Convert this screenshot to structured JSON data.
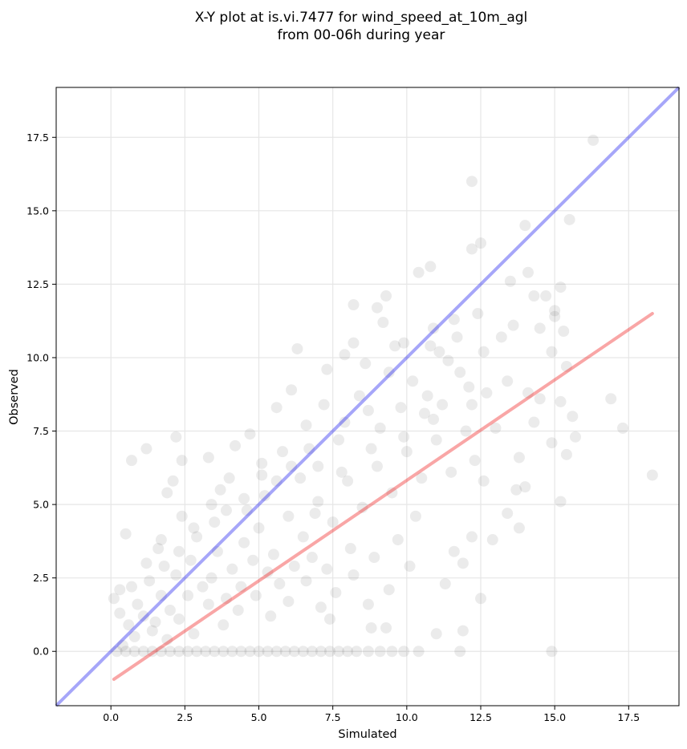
{
  "chart_data": {
    "type": "scatter",
    "title_line1": "X-Y plot at is.vi.7477 for wind_speed_at_10m_agl",
    "title_line2": "from 00-06h during year",
    "xlabel": "Simulated",
    "ylabel": "Observed",
    "xlim": [
      -1.85,
      19.2
    ],
    "ylim": [
      -1.85,
      19.2
    ],
    "xticks": [
      0.0,
      2.5,
      5.0,
      7.5,
      10.0,
      12.5,
      15.0,
      17.5
    ],
    "yticks": [
      0.0,
      2.5,
      5.0,
      7.5,
      10.0,
      12.5,
      15.0,
      17.5
    ],
    "tick_labels": [
      "0.0",
      "2.5",
      "5.0",
      "7.5",
      "10.0",
      "12.5",
      "15.0",
      "17.5"
    ],
    "grid": true,
    "point_color": "#000000",
    "point_opacity": 0.08,
    "identity_line": {
      "color": "#0000ee",
      "opacity": 0.35,
      "x": [
        -1.85,
        19.2
      ],
      "y": [
        -1.85,
        19.2
      ]
    },
    "fit_line": {
      "color": "#ee0000",
      "opacity": 0.35,
      "x": [
        0.1,
        18.3
      ],
      "y": [
        -0.95,
        11.5
      ]
    },
    "points": [
      [
        16.3,
        17.4
      ],
      [
        12.2,
        16.0
      ],
      [
        15.5,
        14.7
      ],
      [
        14.0,
        14.5
      ],
      [
        12.5,
        13.9
      ],
      [
        12.2,
        13.7
      ],
      [
        10.8,
        13.1
      ],
      [
        10.4,
        12.9
      ],
      [
        13.5,
        12.6
      ],
      [
        14.1,
        12.9
      ],
      [
        15.2,
        12.4
      ],
      [
        14.3,
        12.1
      ],
      [
        14.7,
        12.1
      ],
      [
        9.3,
        12.1
      ],
      [
        8.2,
        11.8
      ],
      [
        9.0,
        11.7
      ],
      [
        15.0,
        11.6
      ],
      [
        15.0,
        11.4
      ],
      [
        12.4,
        11.5
      ],
      [
        14.5,
        11.0
      ],
      [
        13.6,
        11.1
      ],
      [
        15.3,
        10.9
      ],
      [
        11.6,
        11.3
      ],
      [
        13.2,
        10.7
      ],
      [
        12.6,
        10.2
      ],
      [
        11.1,
        10.2
      ],
      [
        14.9,
        10.2
      ],
      [
        10.8,
        10.4
      ],
      [
        9.9,
        10.5
      ],
      [
        8.2,
        10.5
      ],
      [
        6.3,
        10.3
      ],
      [
        15.4,
        9.7
      ],
      [
        11.8,
        9.5
      ],
      [
        13.4,
        9.2
      ],
      [
        12.7,
        8.8
      ],
      [
        12.2,
        8.4
      ],
      [
        14.1,
        8.8
      ],
      [
        14.5,
        8.6
      ],
      [
        15.2,
        8.5
      ],
      [
        16.9,
        8.6
      ],
      [
        14.3,
        7.8
      ],
      [
        15.6,
        8.0
      ],
      [
        13.0,
        7.6
      ],
      [
        14.9,
        7.1
      ],
      [
        15.7,
        7.3
      ],
      [
        17.3,
        7.6
      ],
      [
        13.8,
        6.6
      ],
      [
        15.4,
        6.7
      ],
      [
        12.6,
        5.8
      ],
      [
        13.7,
        5.5
      ],
      [
        14.0,
        5.6
      ],
      [
        13.4,
        4.7
      ],
      [
        15.2,
        5.1
      ],
      [
        18.3,
        6.0
      ],
      [
        13.8,
        4.2
      ],
      [
        12.9,
        3.8
      ],
      [
        12.2,
        3.9
      ],
      [
        11.6,
        3.4
      ],
      [
        11.9,
        3.0
      ],
      [
        11.3,
        2.3
      ],
      [
        12.5,
        1.8
      ],
      [
        11.9,
        0.7
      ],
      [
        11.0,
        0.6
      ],
      [
        14.9,
        0.0
      ],
      [
        11.8,
        0.0
      ],
      [
        9.3,
        0.8
      ],
      [
        8.8,
        0.8
      ],
      [
        7.4,
        1.1
      ],
      [
        0.7,
        6.5
      ],
      [
        1.2,
        6.9
      ],
      [
        2.2,
        7.3
      ],
      [
        2.1,
        5.8
      ],
      [
        1.9,
        5.4
      ],
      [
        0.5,
        4.0
      ],
      [
        0.1,
        1.8
      ],
      [
        0.3,
        2.1
      ],
      [
        1.6,
        3.5
      ],
      [
        2.4,
        6.5
      ],
      [
        3.3,
        6.6
      ],
      [
        3.7,
        5.5
      ],
      [
        4.2,
        7.0
      ],
      [
        4.7,
        7.4
      ],
      [
        5.1,
        6.4
      ],
      [
        5.6,
        8.3
      ],
      [
        6.1,
        8.9
      ],
      [
        6.6,
        7.7
      ],
      [
        7.3,
        9.6
      ],
      [
        7.9,
        10.1
      ],
      [
        8.6,
        9.8
      ],
      [
        9.2,
        11.2
      ],
      [
        9.6,
        10.4
      ],
      [
        10.2,
        9.2
      ],
      [
        10.7,
        8.7
      ],
      [
        10.9,
        7.9
      ],
      [
        11.4,
        9.9
      ],
      [
        9.8,
        8.3
      ],
      [
        9.1,
        7.6
      ],
      [
        8.4,
        8.7
      ],
      [
        7.7,
        7.2
      ],
      [
        7.0,
        6.3
      ],
      [
        6.4,
        5.9
      ],
      [
        5.8,
        6.8
      ],
      [
        5.2,
        5.3
      ],
      [
        4.6,
        4.8
      ],
      [
        4.0,
        5.9
      ],
      [
        3.5,
        4.4
      ],
      [
        2.9,
        3.9
      ],
      [
        2.4,
        4.6
      ],
      [
        1.8,
        2.9
      ],
      [
        1.3,
        2.4
      ],
      [
        0.9,
        1.6
      ],
      [
        0.6,
        0.9
      ],
      [
        1.1,
        1.2
      ],
      [
        1.7,
        1.9
      ],
      [
        2.2,
        2.6
      ],
      [
        2.7,
        3.1
      ],
      [
        3.1,
        2.2
      ],
      [
        3.6,
        3.4
      ],
      [
        4.1,
        2.8
      ],
      [
        4.5,
        3.7
      ],
      [
        5.0,
        4.2
      ],
      [
        5.5,
        3.3
      ],
      [
        6.0,
        4.6
      ],
      [
        6.5,
        3.9
      ],
      [
        7.0,
        5.1
      ],
      [
        7.5,
        4.4
      ],
      [
        8.0,
        5.8
      ],
      [
        8.5,
        4.9
      ],
      [
        9.0,
        6.3
      ],
      [
        9.5,
        5.4
      ],
      [
        10.0,
        6.8
      ],
      [
        10.5,
        5.9
      ],
      [
        11.0,
        7.2
      ],
      [
        11.5,
        6.1
      ],
      [
        12.0,
        7.5
      ],
      [
        12.3,
        6.5
      ],
      [
        10.3,
        4.6
      ],
      [
        9.7,
        3.8
      ],
      [
        8.9,
        3.2
      ],
      [
        8.2,
        2.6
      ],
      [
        7.6,
        2.0
      ],
      [
        7.1,
        1.5
      ],
      [
        6.6,
        2.4
      ],
      [
        6.0,
        1.7
      ],
      [
        5.4,
        1.2
      ],
      [
        4.9,
        1.9
      ],
      [
        4.3,
        1.4
      ],
      [
        3.8,
        0.9
      ],
      [
        3.3,
        1.6
      ],
      [
        2.8,
        0.6
      ],
      [
        2.3,
        1.1
      ],
      [
        1.9,
        0.4
      ],
      [
        1.4,
        0.7
      ],
      [
        10.1,
        2.9
      ],
      [
        9.4,
        2.1
      ],
      [
        8.7,
        1.6
      ],
      [
        8.1,
        3.5
      ],
      [
        7.3,
        2.8
      ],
      [
        6.8,
        3.2
      ],
      [
        6.2,
        2.9
      ],
      [
        5.7,
        2.3
      ],
      [
        5.3,
        2.7
      ],
      [
        4.8,
        3.1
      ],
      [
        4.4,
        2.2
      ],
      [
        3.9,
        1.8
      ],
      [
        3.4,
        2.5
      ],
      [
        2.6,
        1.9
      ],
      [
        2.0,
        1.4
      ],
      [
        1.5,
        1.0
      ],
      [
        0.8,
        0.5
      ],
      [
        0.4,
        0.2
      ],
      [
        6.9,
        4.7
      ],
      [
        7.8,
        6.1
      ],
      [
        8.8,
        6.9
      ],
      [
        9.9,
        7.3
      ],
      [
        10.6,
        8.1
      ],
      [
        11.2,
        8.4
      ],
      [
        12.1,
        9.0
      ],
      [
        11.7,
        10.7
      ],
      [
        10.9,
        11.0
      ],
      [
        9.4,
        9.5
      ],
      [
        8.7,
        8.2
      ],
      [
        7.9,
        7.8
      ],
      [
        7.2,
        8.4
      ],
      [
        6.7,
        6.9
      ],
      [
        6.1,
        6.3
      ],
      [
        5.6,
        5.8
      ],
      [
        5.1,
        6.0
      ],
      [
        4.5,
        5.2
      ],
      [
        3.9,
        4.8
      ],
      [
        3.4,
        5.0
      ],
      [
        2.8,
        4.2
      ],
      [
        2.3,
        3.4
      ],
      [
        1.7,
        3.8
      ],
      [
        1.2,
        3.0
      ],
      [
        0.7,
        2.2
      ],
      [
        0.3,
        1.3
      ],
      [
        0.2,
        0.0
      ],
      [
        0.5,
        0.0
      ],
      [
        0.8,
        0.0
      ],
      [
        1.1,
        0.0
      ],
      [
        1.4,
        0.0
      ],
      [
        1.7,
        0.0
      ],
      [
        2.0,
        0.0
      ],
      [
        2.3,
        0.0
      ],
      [
        2.6,
        0.0
      ],
      [
        2.9,
        0.0
      ],
      [
        3.2,
        0.0
      ],
      [
        3.5,
        0.0
      ],
      [
        3.8,
        0.0
      ],
      [
        4.1,
        0.0
      ],
      [
        4.4,
        0.0
      ],
      [
        4.7,
        0.0
      ],
      [
        5.0,
        0.0
      ],
      [
        5.3,
        0.0
      ],
      [
        5.6,
        0.0
      ],
      [
        5.9,
        0.0
      ],
      [
        6.2,
        0.0
      ],
      [
        6.5,
        0.0
      ],
      [
        6.8,
        0.0
      ],
      [
        7.1,
        0.0
      ],
      [
        7.4,
        0.0
      ],
      [
        7.7,
        0.0
      ],
      [
        8.0,
        0.0
      ],
      [
        8.3,
        0.0
      ],
      [
        8.7,
        0.0
      ],
      [
        9.1,
        0.0
      ],
      [
        9.5,
        0.0
      ],
      [
        9.9,
        0.0
      ],
      [
        10.4,
        0.0
      ]
    ]
  }
}
